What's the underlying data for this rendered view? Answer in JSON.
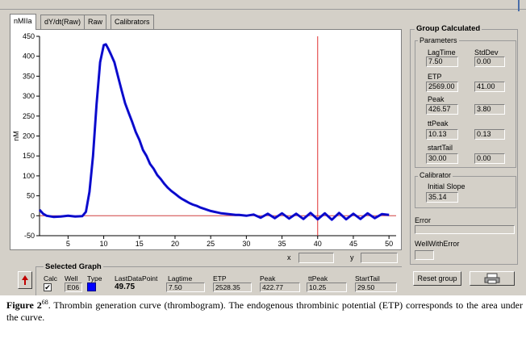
{
  "tabs": [
    {
      "label": "nMIIa",
      "active": true
    },
    {
      "label": "dY/dt(Raw)",
      "active": false
    },
    {
      "label": "Raw",
      "active": false
    },
    {
      "label": "Calibrators",
      "active": false
    }
  ],
  "readout": {
    "x_label": "x",
    "y_label": "y",
    "x_value": "",
    "y_value": ""
  },
  "group": {
    "title": "Group Calculated",
    "parameters_label": "Parameters",
    "stddev_label": "StdDev",
    "params": [
      {
        "label": "LagTime",
        "value": "7.50",
        "stddev": "0.00"
      },
      {
        "label": "ETP",
        "value": "2569.00",
        "stddev": "41.00"
      },
      {
        "label": "Peak",
        "value": "426.57",
        "stddev": "3.80"
      },
      {
        "label": "ttPeak",
        "value": "10.13",
        "stddev": "0.13"
      },
      {
        "label": "startTail",
        "value": "30.00",
        "stddev": "0.00"
      }
    ],
    "calibrator_label": "Calibrator",
    "initial_slope_label": "Initial Slope",
    "initial_slope_value": "35.14",
    "error_label": "Error",
    "well_with_error_label": "WellWithError"
  },
  "selected": {
    "title": "Selected Graph",
    "headers": [
      "Calc",
      "Well",
      "Type",
      "LastDataPoint",
      "Lagtime",
      "ETP",
      "Peak",
      "ttPeak",
      "StartTail"
    ],
    "calc_checked": true,
    "calc_mark": "✔",
    "well": "E06",
    "type_color": "#0000ff",
    "last_data_point": "49.75",
    "lagtime": "7.50",
    "etp": "2528.35",
    "peak": "422.77",
    "ttpeak": "10.25",
    "starttail": "29.50"
  },
  "buttons": {
    "reset_group": "Reset group"
  },
  "caption": {
    "label": "Figure 2",
    "ref": "68",
    "text": ". Thrombin generation curve (thrombogram). The endogenous thrombinic potential (ETP) corresponds to the area under the curve."
  },
  "colors": {
    "curve": "#1010e0",
    "cursor": "#e03030",
    "baseline": "#d04040"
  },
  "chart_data": {
    "type": "line",
    "ylabel": "nM",
    "xlim": [
      1,
      51
    ],
    "ylim": [
      -50,
      450
    ],
    "x_ticks": [
      5,
      10,
      15,
      20,
      25,
      30,
      35,
      40,
      45,
      50
    ],
    "y_ticks": [
      -50,
      0,
      50,
      100,
      150,
      200,
      250,
      300,
      350,
      400,
      450
    ],
    "cursor_x": 40,
    "baseline_y": 0,
    "series": [
      {
        "x": [
          1,
          1.5,
          2,
          3,
          4,
          5,
          6,
          7,
          7.5,
          8,
          8.5,
          9,
          9.5,
          10,
          10.3,
          10.6,
          11,
          11.5,
          12,
          12.5,
          13,
          13.5,
          14,
          14.5,
          15,
          15.5,
          16,
          16.5,
          17,
          17.5,
          18,
          18.5,
          19,
          19.5,
          20,
          20.5,
          21,
          21.5,
          22,
          22.5,
          23,
          23.5,
          24,
          24.5,
          25,
          25.5,
          26,
          26.5,
          27,
          27.5,
          28,
          28.5,
          29,
          29.5,
          30,
          31,
          32,
          33,
          34,
          35,
          36,
          37,
          38,
          39,
          40,
          41,
          42,
          43,
          44,
          45,
          46,
          47,
          48,
          49,
          50
        ],
        "y": [
          15,
          5,
          0,
          -3,
          -2,
          0,
          -2,
          -1,
          10,
          60,
          150,
          280,
          385,
          428,
          430,
          420,
          405,
          385,
          350,
          315,
          282,
          258,
          235,
          210,
          190,
          165,
          150,
          130,
          118,
          102,
          92,
          80,
          70,
          62,
          55,
          48,
          42,
          37,
          32,
          28,
          25,
          21,
          18,
          15,
          12,
          10,
          8,
          6,
          5,
          4,
          3,
          2,
          2,
          1,
          0,
          3,
          -5,
          5,
          -6,
          6,
          -7,
          5,
          -8,
          7,
          -9,
          6,
          -10,
          7,
          -9,
          5,
          -8,
          6,
          -6,
          4,
          2
        ]
      }
    ]
  }
}
